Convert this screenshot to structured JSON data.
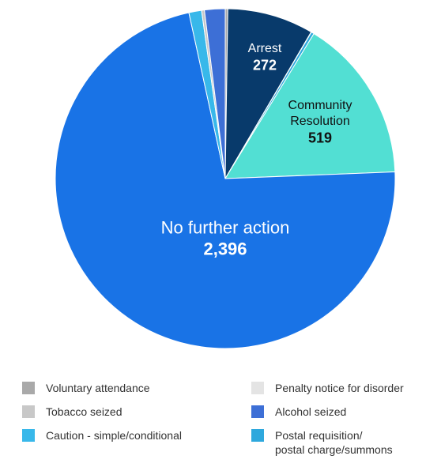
{
  "chart_data": {
    "type": "pie",
    "title": "",
    "slices": [
      {
        "label": "Voluntary attendance",
        "value": 8,
        "color": "#a9a9a9",
        "label_lines": []
      },
      {
        "label": "Arrest",
        "value": 272,
        "color": "#083a6b",
        "label_lines": [
          "Arrest"
        ],
        "value_text": "272"
      },
      {
        "label": "Penalty notice for disorder",
        "value": 1,
        "color": "#e4e4e4",
        "label_lines": []
      },
      {
        "label": "Postal requisition/ postal charge/summons",
        "value": 9,
        "color": "#2ea8dd",
        "label_lines": []
      },
      {
        "label": "Community Resolution",
        "value": 519,
        "color": "#52dfd3",
        "label_lines": [
          "Community",
          "Resolution"
        ],
        "value_text": "519"
      },
      {
        "label": "No further action",
        "value": 2396,
        "color": "#1973e6",
        "label_lines": [
          "No further action"
        ],
        "value_text": "2,396"
      },
      {
        "label": "Caution - simple/conditional",
        "value": 40,
        "color": "#38b8ea",
        "label_lines": []
      },
      {
        "label": "Tobacco seized",
        "value": 9,
        "color": "#c8c8c8",
        "label_lines": []
      },
      {
        "label": "Alcohol seized",
        "value": 65,
        "color": "#3d6fd6",
        "label_lines": []
      }
    ],
    "legend": [
      {
        "label": "Voluntary attendance",
        "color": "#a9a9a9"
      },
      {
        "label": "Penalty notice for disorder",
        "color": "#e4e4e4"
      },
      {
        "label": "Tobacco seized",
        "color": "#c8c8c8"
      },
      {
        "label": "Alcohol seized",
        "color": "#3d6fd6"
      },
      {
        "label": "Caution - simple/conditional",
        "color": "#38b8ea"
      },
      {
        "label": "Postal requisition/\npostal charge/summons",
        "color": "#2ea8dd"
      }
    ],
    "legend_placement": "bottom"
  }
}
